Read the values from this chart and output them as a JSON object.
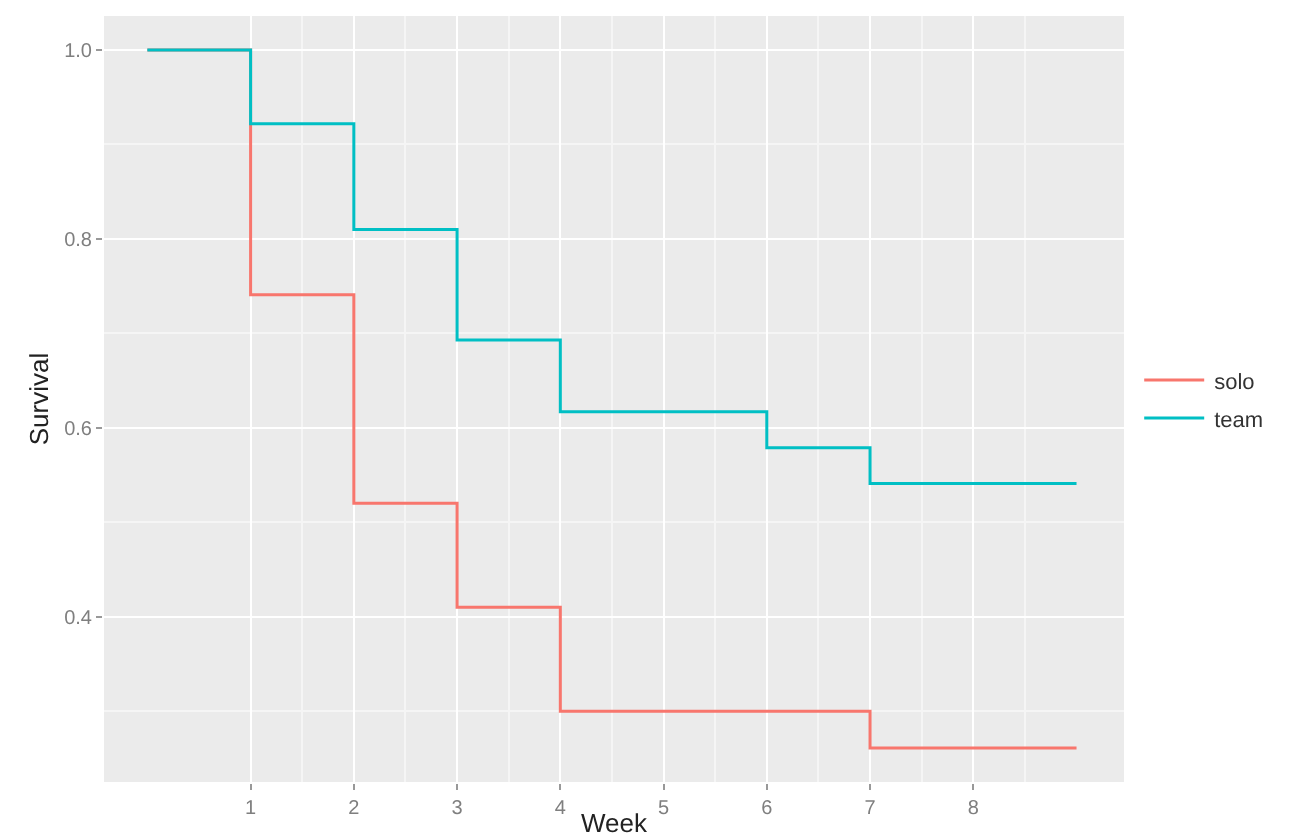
{
  "chart_data": {
    "type": "step",
    "xlabel": "Week",
    "ylabel": "Survival",
    "series": [
      {
        "name": "solo",
        "color": "#f8766d",
        "x": [
          0,
          1,
          2,
          3,
          4,
          7,
          9
        ],
        "values": [
          1,
          0.741,
          0.52,
          0.41,
          0.3,
          0.261,
          0.261
        ]
      },
      {
        "name": "team",
        "color": "#00bfc4",
        "x": [
          0,
          1,
          2,
          3,
          4,
          6,
          7,
          9
        ],
        "values": [
          1,
          0.922,
          0.81,
          0.693,
          0.617,
          0.579,
          0.541,
          0.541
        ]
      }
    ],
    "xlim": [
      -0.42,
      9.46
    ],
    "xticks": [
      1,
      2,
      3,
      4,
      5,
      6,
      7,
      8
    ],
    "ylim": [
      0.225,
      1.036
    ],
    "yticks": [
      0.4,
      0.6,
      0.8,
      {
        "value": 1,
        "label": "1.0"
      }
    ],
    "grid": true,
    "legend": "right",
    "marker": "none",
    "line_style": "solid"
  }
}
